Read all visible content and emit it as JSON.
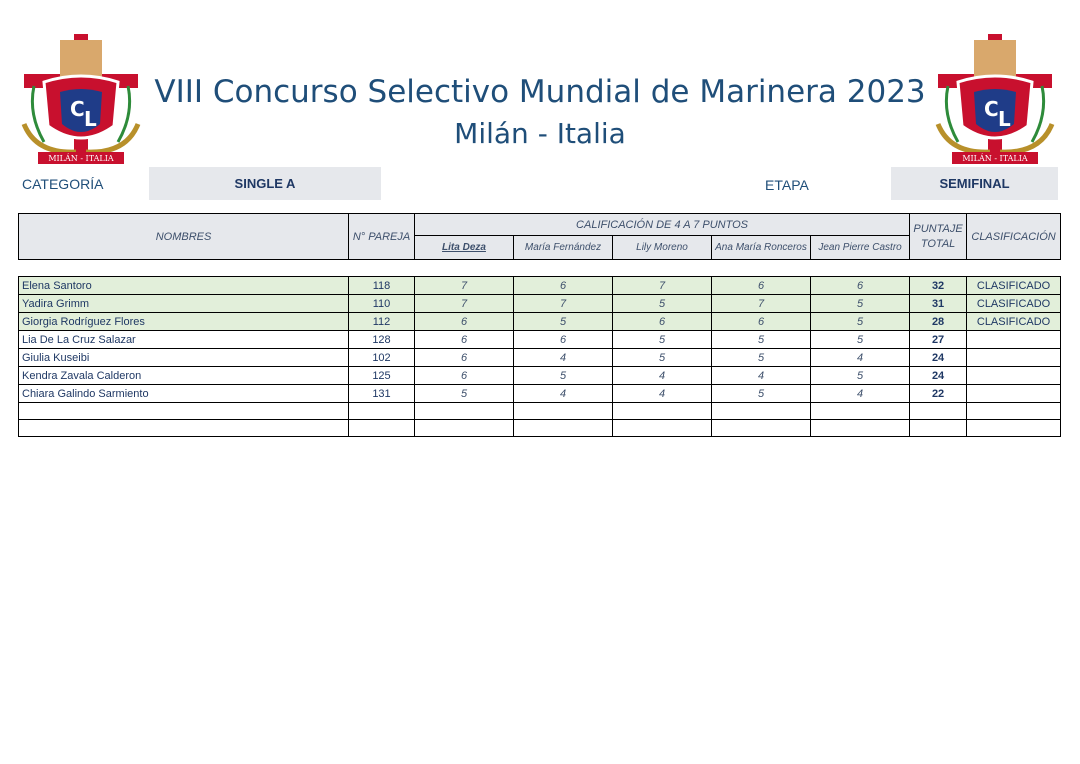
{
  "header": {
    "title": "VIII Concurso Selectivo Mundial de Marinera 2023",
    "subtitle": "Milán - Italia",
    "logo_text": "MILÁN - ITALIA"
  },
  "meta": {
    "category_label": "CATEGORÍA",
    "category_value": "SINGLE A",
    "stage_label": "ETAPA",
    "stage_value": "SEMIFINAL"
  },
  "table": {
    "headers": {
      "names": "NOMBRES",
      "pair_no": "N° PAREJA",
      "scoring": "CALIFICACIÓN DE 4 A 7 PUNTOS",
      "total": "PUNTAJE TOTAL",
      "classification": "CLASIFICACIÓN",
      "judges": [
        "Lita Deza",
        "María Fernández",
        "Lily Moreno",
        "Ana María Ronceros",
        "Jean Pierre Castro"
      ]
    },
    "rows": [
      {
        "name": "Elena Santoro",
        "pair": "118",
        "scores": [
          "7",
          "6",
          "7",
          "6",
          "6"
        ],
        "total": "32",
        "classification": "CLASIFICADO"
      },
      {
        "name": "Yadira Grimm",
        "pair": "110",
        "scores": [
          "7",
          "7",
          "5",
          "7",
          "5"
        ],
        "total": "31",
        "classification": "CLASIFICADO"
      },
      {
        "name": "Giorgia Rodríguez Flores",
        "pair": "112",
        "scores": [
          "6",
          "5",
          "6",
          "6",
          "5"
        ],
        "total": "28",
        "classification": "CLASIFICADO"
      },
      {
        "name": "Lia De La Cruz Salazar",
        "pair": "128",
        "scores": [
          "6",
          "6",
          "5",
          "5",
          "5"
        ],
        "total": "27",
        "classification": ""
      },
      {
        "name": "Giulia Kuseibi",
        "pair": "102",
        "scores": [
          "6",
          "4",
          "5",
          "5",
          "4"
        ],
        "total": "24",
        "classification": ""
      },
      {
        "name": "Kendra Zavala Calderon",
        "pair": "125",
        "scores": [
          "6",
          "5",
          "4",
          "4",
          "5"
        ],
        "total": "24",
        "classification": ""
      },
      {
        "name": "Chiara Galindo Sarmiento",
        "pair": "131",
        "scores": [
          "5",
          "4",
          "4",
          "5",
          "4"
        ],
        "total": "22",
        "classification": ""
      }
    ],
    "empty_rows": 2
  },
  "colors": {
    "title": "#1f4e79",
    "header_fill": "#e6e8ec",
    "qualified_fill": "#e2efda",
    "shield_red": "#c8102e",
    "shield_blue": "#1f3c88",
    "laurel_gold": "#b8902a"
  }
}
